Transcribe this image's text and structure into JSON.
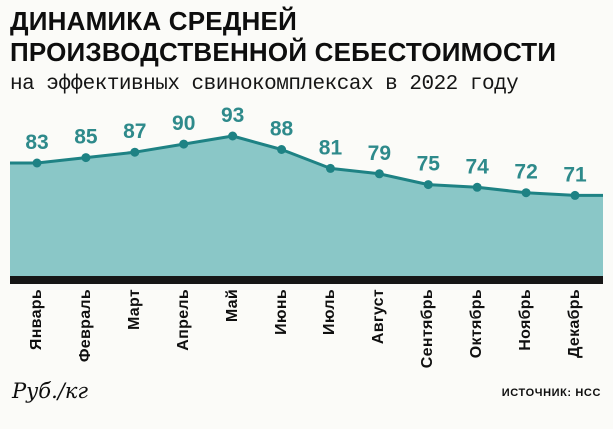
{
  "header": {
    "title_line1": "ДИНАМИКА СРЕДНЕЙ",
    "title_line2": "ПРОИЗВОДСТВЕННОЙ СЕБЕСТОИМОСТИ",
    "subtitle": "на эффективных свинокомплексах в 2022 году"
  },
  "chart_data": {
    "type": "area",
    "title": "Динамика средней производственной себестоимости на эффективных свинокомплексах в 2022 году",
    "categories": [
      "Январь",
      "Февраль",
      "Март",
      "Апрель",
      "Май",
      "Июнь",
      "Июль",
      "Август",
      "Сентябрь",
      "Октябрь",
      "Ноябрь",
      "Декабрь"
    ],
    "values": [
      83,
      85,
      87,
      90,
      93,
      88,
      81,
      79,
      75,
      74,
      72,
      71
    ],
    "xlabel": "",
    "ylabel": "Руб./кг",
    "ylim": [
      60,
      100
    ],
    "grid": false,
    "legend": "none",
    "data_labels": true,
    "colors": {
      "area_fill": "#8ac7c7",
      "line": "#1e8284",
      "point": "#1e8284",
      "value_labels": "#2e8a8b",
      "axis_bar": "#161616"
    }
  },
  "footer": {
    "unit_label": "Руб./кг",
    "source_label": "ИСТОЧНИК: НСС"
  }
}
